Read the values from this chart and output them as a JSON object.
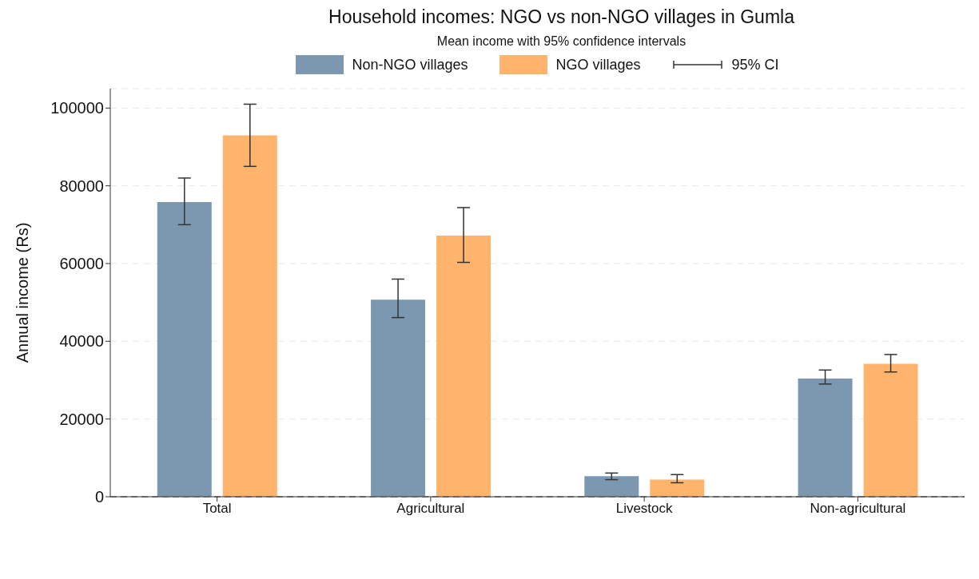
{
  "chart_data": {
    "type": "bar",
    "title": "Household incomes: NGO vs non-NGO villages in Gumla",
    "subtitle": "Mean income with 95% confidence intervals",
    "ylabel": "Annual income (Rs)",
    "categories": [
      "Total",
      "Agricultural",
      "Livestock",
      "Non-agricultural"
    ],
    "series": [
      {
        "name": "Non-NGO villages",
        "color": "#7b98b0",
        "values": [
          75800,
          50700,
          5300,
          30400
        ],
        "errors": [
          [
            70000,
            82000
          ],
          [
            46100,
            56000
          ],
          [
            4400,
            6100
          ],
          [
            29000,
            32600
          ]
        ]
      },
      {
        "name": "NGO villages",
        "color": "#ffb46e",
        "values": [
          93000,
          67200,
          4400,
          34200
        ],
        "errors": [
          [
            85000,
            101000
          ],
          [
            60300,
            74400
          ],
          [
            3600,
            5700
          ],
          [
            32100,
            36600
          ]
        ]
      }
    ],
    "annotations": [
      "95% CI"
    ],
    "ylim": [
      0,
      105000
    ],
    "yticks": [
      0,
      20000,
      40000,
      60000,
      80000,
      100000
    ],
    "grid": "y",
    "legend": "top",
    "ref_lines": [
      {
        "axis": "y",
        "value": 0,
        "color": "#999999",
        "line_style": "dashed"
      }
    ]
  }
}
